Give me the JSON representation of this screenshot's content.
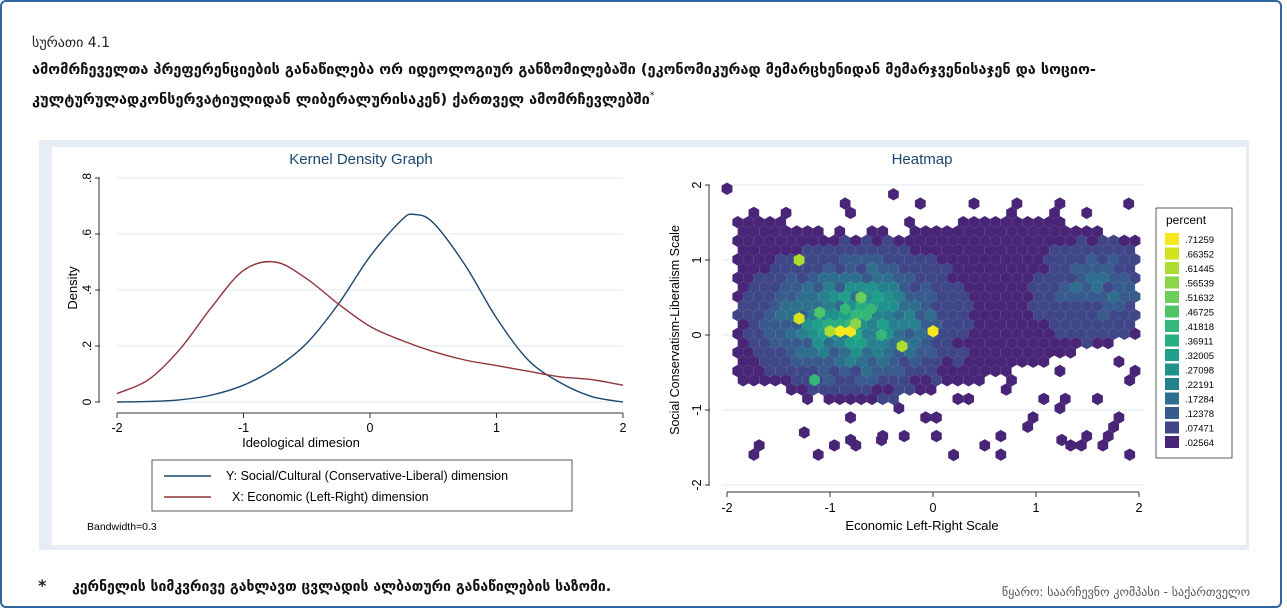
{
  "figure": {
    "label": "სურათი 4.1",
    "title": "ამომრჩეველთა პრეფერენციების განაწილება ორ იდეოლოგიურ განზომილებაში (ეკონომიკურად მემარცხენიდან მემარჯვენისაჯენ და სოციო-კულტურულადკონსერვატიულიდან ლიბერალურისაკენ) ქართველ ამომრჩევლებში",
    "title_mark": "*",
    "footnote_mark": "*",
    "footnote": "კერნელის სიმკვრივე გახლავთ ცვლადის ალბათური განაწილების საზომი.",
    "source": "წყარო: საარჩევნო კომპასი - საქართველო"
  },
  "colors": {
    "frame": "#2e67a0",
    "panel_bg": "#e6edf4",
    "series_social": "#1a476f",
    "series_economic": "#90353b"
  },
  "chart_data": [
    {
      "type": "line",
      "title": "Kernel Density Graph",
      "xlabel": "Ideological dimesion",
      "ylabel": "Density",
      "xlim": [
        -2,
        2
      ],
      "ylim": [
        0,
        0.8
      ],
      "xticks": [
        -2,
        -1,
        0,
        1,
        2
      ],
      "yticks": [
        0,
        0.2,
        0.4,
        0.6,
        0.8
      ],
      "ytick_labels": [
        "0",
        ".2",
        ".4",
        ".6",
        ".8"
      ],
      "grid": true,
      "note": "Bandwidth=0.3",
      "legend_position": "bottom",
      "series": [
        {
          "name": "Y: Social/Cultural (Conservative-Liberal) dimension",
          "x": [
            -2,
            -1.75,
            -1.5,
            -1.25,
            -1.0,
            -0.75,
            -0.5,
            -0.25,
            0,
            0.25,
            0.35,
            0.5,
            0.75,
            1.0,
            1.25,
            1.5,
            1.75,
            2
          ],
          "y": [
            0.0,
            0.002,
            0.008,
            0.025,
            0.06,
            0.12,
            0.21,
            0.35,
            0.52,
            0.65,
            0.67,
            0.64,
            0.49,
            0.3,
            0.15,
            0.07,
            0.02,
            0.0
          ]
        },
        {
          "name": "X: Economic (Left-Right) dimension",
          "x": [
            -2,
            -1.75,
            -1.5,
            -1.25,
            -1.0,
            -0.75,
            -0.5,
            -0.25,
            0,
            0.25,
            0.5,
            0.75,
            1.0,
            1.25,
            1.5,
            1.75,
            2
          ],
          "y": [
            0.03,
            0.08,
            0.19,
            0.34,
            0.47,
            0.5,
            0.44,
            0.35,
            0.27,
            0.22,
            0.18,
            0.15,
            0.13,
            0.11,
            0.09,
            0.08,
            0.06
          ]
        }
      ]
    },
    {
      "type": "heatmap",
      "title": "Heatmap",
      "xlabel": "Economic Left-Right Scale",
      "ylabel": "Social Conservatism-Liberalism Scale",
      "xlim": [
        -2,
        2
      ],
      "ylim": [
        -2,
        2
      ],
      "xticks": [
        -2,
        -1,
        0,
        1,
        2
      ],
      "yticks": [
        -2,
        -1,
        0,
        1,
        2
      ],
      "grid": true,
      "legend_title": "percent",
      "legend_position": "right",
      "legend": [
        ".71259",
        ".66352",
        ".61445",
        ".56539",
        ".51632",
        ".46725",
        ".41818",
        ".36911",
        ".32005",
        ".27098",
        ".22191",
        ".17284",
        ".12378",
        ".07471",
        ".02564"
      ],
      "legend_colors": [
        "#f5e820",
        "#d2e21b",
        "#aedc30",
        "#8bd646",
        "#6ccd5a",
        "#4fc36a",
        "#35b779",
        "#26ad81",
        "#1fa088",
        "#21918c",
        "#27808e",
        "#2e6f8e",
        "#375b8d",
        "#3f4788",
        "#482576"
      ],
      "hot_cells": [
        {
          "x": -0.8,
          "y": 0.05,
          "v": 0.71
        },
        {
          "x": -0.9,
          "y": 0.05,
          "v": 0.7
        },
        {
          "x": -1.0,
          "y": 0.05,
          "v": 0.62
        },
        {
          "x": -0.75,
          "y": 0.15,
          "v": 0.55
        },
        {
          "x": 0.0,
          "y": 0.05,
          "v": 0.72
        },
        {
          "x": -1.3,
          "y": 0.22,
          "v": 0.66
        },
        {
          "x": -1.3,
          "y": 1.0,
          "v": 0.6
        },
        {
          "x": -0.3,
          "y": -0.15,
          "v": 0.6
        },
        {
          "x": -0.7,
          "y": 0.5,
          "v": 0.5
        },
        {
          "x": -0.6,
          "y": 0.35,
          "v": 0.42
        },
        {
          "x": -1.1,
          "y": 0.3,
          "v": 0.45
        },
        {
          "x": -0.5,
          "y": 0.0,
          "v": 0.4
        },
        {
          "x": -1.15,
          "y": -0.6,
          "v": 0.42
        },
        {
          "x": -0.85,
          "y": 0.35,
          "v": 0.4
        }
      ]
    }
  ]
}
